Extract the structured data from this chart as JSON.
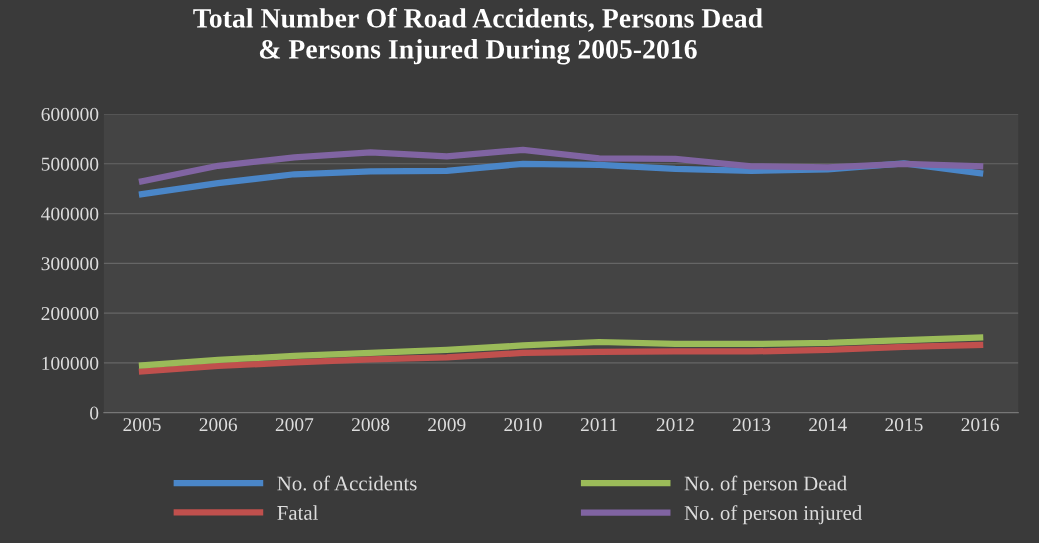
{
  "chart_data": {
    "type": "line",
    "title": "Total Number Of Road Accidents, Persons Dead\n& Persons Injured During 2005-2016",
    "categories": [
      "2005",
      "2006",
      "2007",
      "2008",
      "2009",
      "2010",
      "2011",
      "2012",
      "2013",
      "2014",
      "2015",
      "2016"
    ],
    "series": [
      {
        "name": "No. of Accidents",
        "color": "#4a86c8",
        "values": [
          439000,
          461000,
          479000,
          485000,
          486000,
          500000,
          498000,
          490000,
          486000,
          489000,
          501000,
          481000
        ]
      },
      {
        "name": "Fatal",
        "color": "#c0504d",
        "values": [
          83000,
          94000,
          101000,
          107000,
          111000,
          120000,
          122000,
          123000,
          123000,
          126000,
          132000,
          136000
        ]
      },
      {
        "name": "No. of person Dead",
        "color": "#9bbb59",
        "values": [
          95000,
          106000,
          114000,
          120000,
          126000,
          135000,
          142000,
          138000,
          138000,
          140000,
          146000,
          151000
        ]
      },
      {
        "name": "No. of person injured",
        "color": "#8064a2",
        "values": [
          465000,
          496000,
          513000,
          523000,
          515000,
          528000,
          511000,
          510000,
          495000,
          493000,
          500000,
          495000
        ]
      }
    ],
    "ylim": [
      0,
      600000
    ],
    "yticks": [
      0,
      100000,
      200000,
      300000,
      400000,
      500000,
      600000
    ],
    "grid": "y",
    "legend": "bottom",
    "marker": "none",
    "line_style": "solid"
  }
}
